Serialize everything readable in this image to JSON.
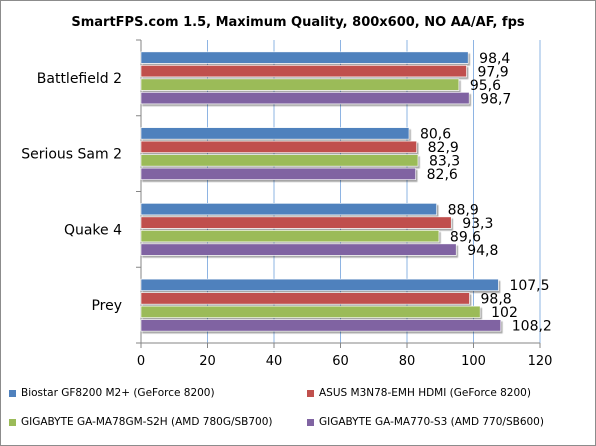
{
  "chart_data": {
    "type": "bar",
    "orientation": "horizontal",
    "title": "SmartFPS.com 1.5, Maximum Quality, 800x600, NO AA/AF, fps",
    "categories": [
      "Battlefield 2",
      "Serious Sam 2",
      "Quake 4",
      "Prey"
    ],
    "series": [
      {
        "name": "Biostar GF8200 M2+ (GeForce 8200)",
        "color": "#4F81BD",
        "values": [
          98.4,
          80.6,
          88.9,
          107.5
        ],
        "labels": [
          "98,4",
          "80,6",
          "88,9",
          "107,5"
        ]
      },
      {
        "name": "ASUS M3N78-EMH HDMI (GeForce 8200)",
        "color": "#C0504D",
        "values": [
          97.9,
          82.9,
          93.3,
          98.8
        ],
        "labels": [
          "97,9",
          "82,9",
          "93,3",
          "98,8"
        ]
      },
      {
        "name": "GIGABYTE GA-MA78GM-S2H (AMD 780G/SB700)",
        "color": "#9BBB59",
        "values": [
          95.6,
          83.3,
          89.6,
          102
        ],
        "labels": [
          "95,6",
          "83,3",
          "89,6",
          "102"
        ]
      },
      {
        "name": "GIGABYTE GA-MA770-S3 (AMD 770/SB600)",
        "color": "#8064A2",
        "values": [
          98.7,
          82.6,
          94.8,
          108.2
        ],
        "labels": [
          "98,7",
          "82,6",
          "94,8",
          "108,2"
        ]
      }
    ],
    "xlim": [
      0,
      120
    ],
    "xticks": [
      0,
      20,
      40,
      60,
      80,
      100,
      120
    ],
    "grid": "vertical",
    "legend_position": "bottom"
  }
}
